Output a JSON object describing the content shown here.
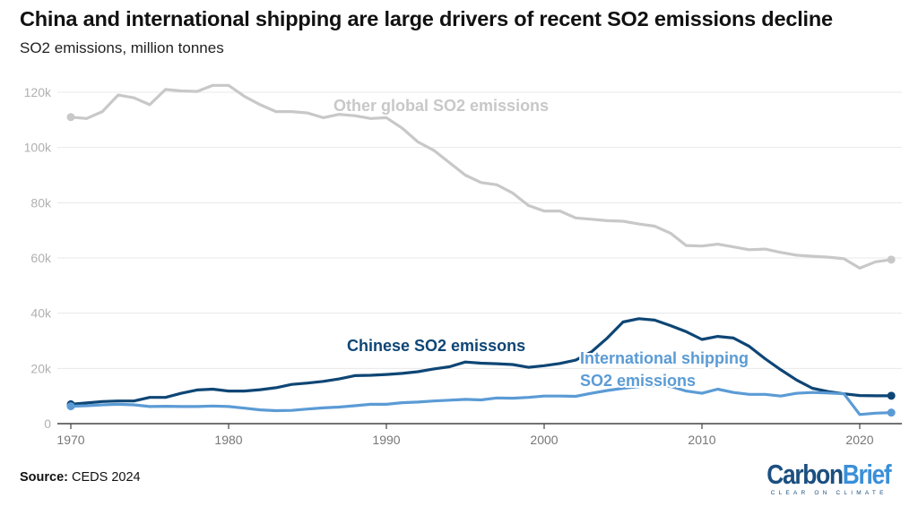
{
  "title": "China and international shipping are large drivers of recent SO2 emissions decline",
  "subtitle": "SO2 emissions, million tonnes",
  "source_label": "Source:",
  "source_text": "CEDS 2024",
  "logo": {
    "word_a": "Carbon",
    "word_b": "Brief",
    "tagline": "CLEAR ON CLIMATE"
  },
  "chart_data": {
    "type": "line",
    "title": "China and international shipping are large drivers of recent SO2 emissions decline",
    "ylabel": "SO2 emissions, million tonnes",
    "xlim": [
      1970,
      2022
    ],
    "ylim": [
      0,
      120000
    ],
    "x_ticks": [
      1970,
      1980,
      1990,
      2000,
      2010,
      2020
    ],
    "y_ticks": [
      0,
      20000,
      40000,
      60000,
      80000,
      100000,
      120000
    ],
    "y_tick_labels": [
      "0",
      "20k",
      "40k",
      "60k",
      "80k",
      "100k",
      "120k"
    ],
    "grid": true,
    "legend": "inline labels",
    "x": [
      1970,
      1971,
      1972,
      1973,
      1974,
      1975,
      1976,
      1977,
      1978,
      1979,
      1980,
      1981,
      1982,
      1983,
      1984,
      1985,
      1986,
      1987,
      1988,
      1989,
      1990,
      1991,
      1992,
      1993,
      1994,
      1995,
      1996,
      1997,
      1998,
      1999,
      2000,
      2001,
      2002,
      2003,
      2004,
      2005,
      2006,
      2007,
      2008,
      2009,
      2010,
      2011,
      2012,
      2013,
      2014,
      2015,
      2016,
      2017,
      2018,
      2019,
      2020,
      2021,
      2022
    ],
    "series": [
      {
        "name": "Other global SO2 emissions",
        "color": "#c8c8c8",
        "values": [
          111000,
          110500,
          113000,
          119000,
          118000,
          115500,
          121000,
          120500,
          120300,
          122500,
          122500,
          118500,
          115500,
          113000,
          113000,
          112500,
          110800,
          112000,
          111500,
          110500,
          110800,
          107000,
          102000,
          99000,
          94500,
          90000,
          87300,
          86500,
          83500,
          79000,
          77000,
          77000,
          74500,
          74000,
          73500,
          73300,
          72300,
          71500,
          69000,
          64500,
          64300,
          65000,
          64000,
          63000,
          63200,
          62000,
          61000,
          60600,
          60300,
          59700,
          56300,
          58600,
          59400
        ]
      },
      {
        "name": "Chinese SO2 emissons",
        "color": "#0e4675",
        "values": [
          7000,
          7500,
          8000,
          8200,
          8200,
          9500,
          9500,
          11000,
          12200,
          12500,
          11800,
          11800,
          12300,
          13000,
          14200,
          14700,
          15300,
          16200,
          17400,
          17500,
          17800,
          18200,
          18800,
          19800,
          20600,
          22300,
          21900,
          21700,
          21400,
          20400,
          21000,
          21800,
          23000,
          26000,
          31000,
          36800,
          38000,
          37500,
          35500,
          33300,
          30500,
          31600,
          31000,
          28000,
          23500,
          19500,
          15800,
          12800,
          11600,
          10800,
          10200,
          10100,
          10100
        ]
      },
      {
        "name": "International shipping SO2 emissions",
        "color": "#5b9bd5",
        "values": [
          6300,
          6500,
          6800,
          7000,
          6800,
          6200,
          6300,
          6200,
          6200,
          6400,
          6200,
          5600,
          5000,
          4700,
          4800,
          5300,
          5700,
          6000,
          6500,
          7000,
          7000,
          7600,
          7800,
          8200,
          8500,
          8800,
          8600,
          9300,
          9200,
          9500,
          10000,
          10000,
          9900,
          11000,
          12000,
          12800,
          13400,
          13800,
          13500,
          11800,
          11000,
          12500,
          11300,
          10600,
          10600,
          10000,
          11000,
          11300,
          11100,
          10800,
          3300,
          3800,
          4000
        ]
      }
    ],
    "labels": {
      "other": "Other global SO2 emissions",
      "china": "Chinese SO2 emissons",
      "shipping_line1": "International shipping",
      "shipping_line2": "SO2 emissions"
    }
  }
}
